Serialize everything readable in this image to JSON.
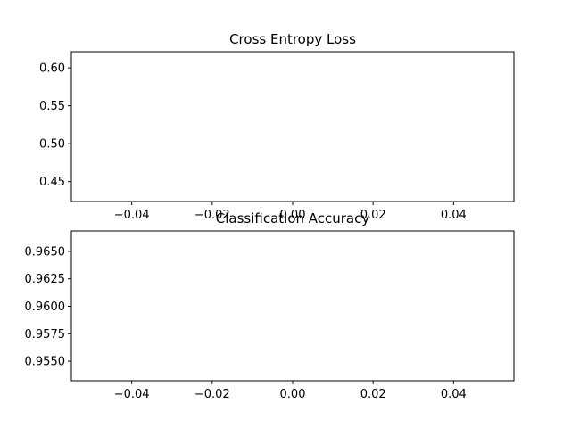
{
  "chart_data": [
    {
      "type": "line",
      "title": "Cross Entropy Loss",
      "xlabel": "",
      "ylabel": "",
      "xlim": [
        -0.055,
        0.055
      ],
      "ylim": [
        0.4238,
        0.6213
      ],
      "x_ticks": [
        -0.04,
        -0.02,
        0.0,
        0.02,
        0.04
      ],
      "x_tick_labels": [
        "−0.04",
        "−0.02",
        "0.00",
        "0.02",
        "0.04"
      ],
      "y_ticks": [
        0.45,
        0.5,
        0.55,
        0.6
      ],
      "y_tick_labels": [
        "0.45",
        "0.50",
        "0.55",
        "0.60"
      ],
      "grid": false,
      "series": [
        {
          "x": [],
          "values": []
        }
      ]
    },
    {
      "type": "line",
      "title": "Classification Accuracy",
      "xlabel": "",
      "ylabel": "",
      "xlim": [
        -0.055,
        0.055
      ],
      "ylim": [
        0.95322,
        0.96686
      ],
      "x_ticks": [
        -0.04,
        -0.02,
        0.0,
        0.02,
        0.04
      ],
      "x_tick_labels": [
        "−0.04",
        "−0.02",
        "0.00",
        "0.02",
        "0.04"
      ],
      "y_ticks": [
        0.955,
        0.9575,
        0.96,
        0.9625,
        0.965
      ],
      "y_tick_labels": [
        "0.9550",
        "0.9575",
        "0.9600",
        "0.9625",
        "0.9650"
      ],
      "grid": false,
      "series": [
        {
          "x": [],
          "values": []
        }
      ]
    }
  ]
}
